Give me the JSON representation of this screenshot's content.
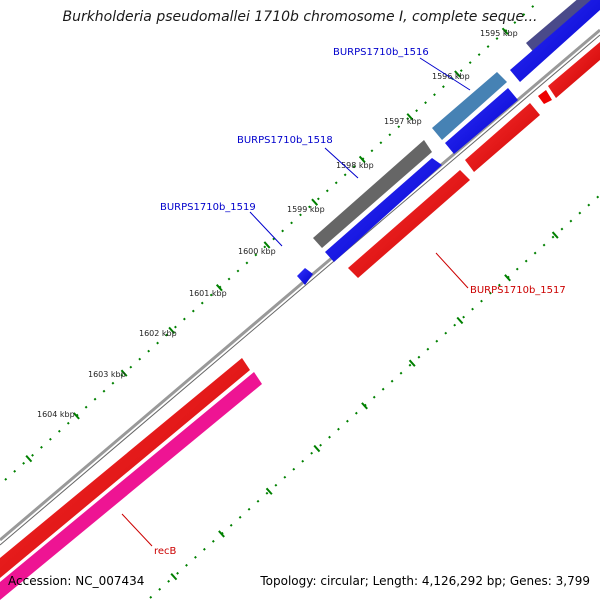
{
  "title": "Burkholderia pseudomallei 1710b chromosome I, complete seque...",
  "footer": {
    "accession": "Accession: NC_007434",
    "summary": "Topology: circular; Length: 4,126,292 bp; Genes: 3,799"
  },
  "ticks": [
    "1595 kbp",
    "1596 kbp",
    "1597 kbp",
    "1598 kbp",
    "1599 kbp",
    "1600 kbp",
    "1601 kbp",
    "1602 kbp",
    "1603 kbp",
    "1604 kbp"
  ],
  "gene_labels": [
    {
      "text": "BURPS1710b_1516",
      "color": "#0000cc"
    },
    {
      "text": "BURPS1710b_1518",
      "color": "#0000cc"
    },
    {
      "text": "BURPS1710b_1519",
      "color": "#0000cc"
    },
    {
      "text": "BURPS1710b_1517",
      "color": "#cc0000"
    },
    {
      "text": "recB",
      "color": "#cc0000"
    }
  ],
  "colors": {
    "forward_cds": "#0000ee",
    "reverse_cds": "#ee0000",
    "gene_gray": "#666666",
    "gene_steel": "#4682b4",
    "gene_navy": "#4a4a8a",
    "recB": "#ee1493",
    "backbone": "#888888",
    "ticks": "#008000"
  }
}
